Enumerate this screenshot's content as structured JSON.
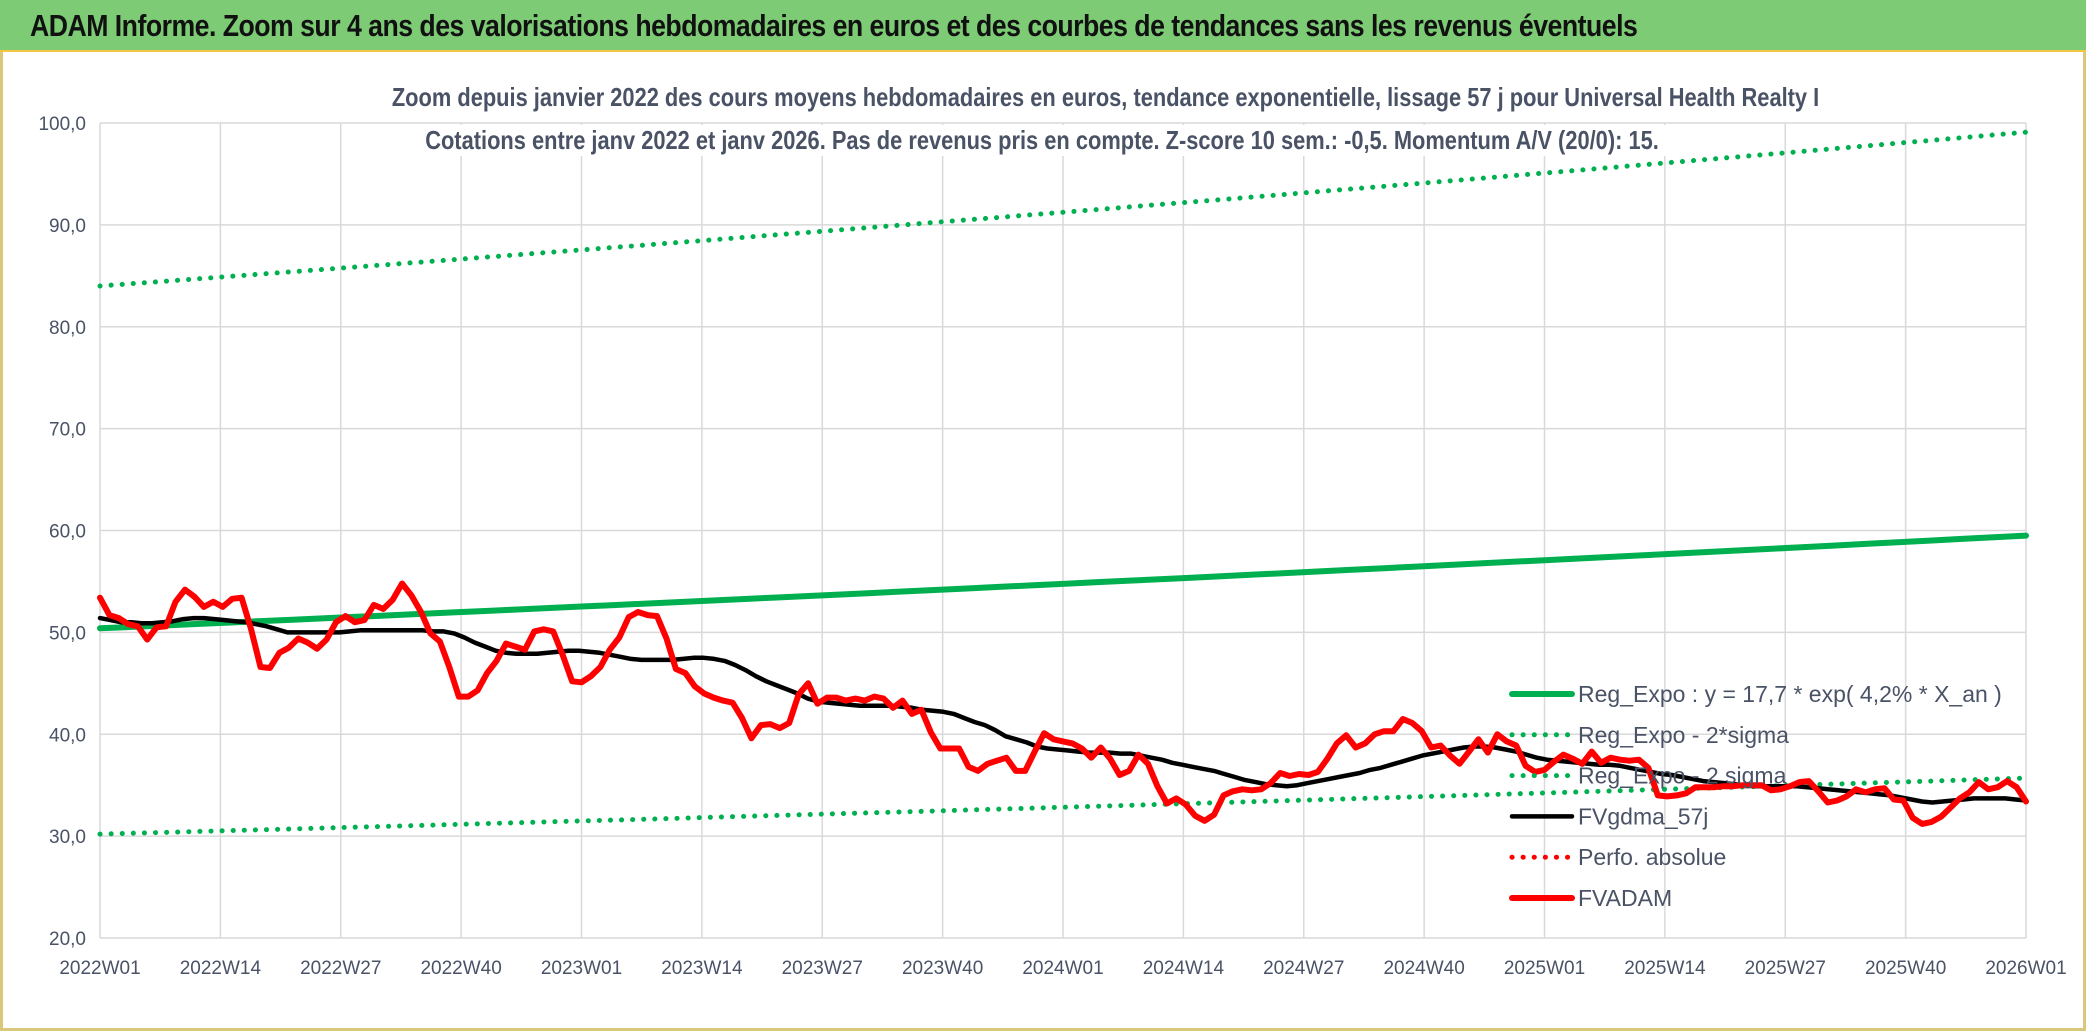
{
  "header": {
    "title": "ADAM Informe. Zoom sur 4 ans des valorisations hebdomadaires en euros et des courbes de tendances sans les revenus éventuels"
  },
  "chart_data": {
    "type": "line",
    "title": "Zoom depuis janvier 2022 des cours moyens hebdomadaires en euros, tendance exponentielle, lissage 57 j pour Universal Health Realty I",
    "subtitle": "Cotations entre janv 2022 et janv 2026. Pas de revenus pris en compte. Z-score 10 sem.: -0,5. Momentum A/V (20/0): 15.",
    "xlabel": "",
    "ylabel": "",
    "ylim": [
      20,
      100
    ],
    "yticks": [
      "20,0",
      "30,0",
      "40,0",
      "50,0",
      "60,0",
      "70,0",
      "80,0",
      "90,0",
      "100,0"
    ],
    "x_ticks": [
      "2022W01",
      "2022W14",
      "2022W27",
      "2022W40",
      "2023W01",
      "2023W14",
      "2023W27",
      "2023W40",
      "2024W01",
      "2024W14",
      "2024W27",
      "2024W40",
      "2025W01",
      "2025W14",
      "2025W27",
      "2025W40",
      "2026W01"
    ],
    "grid": true,
    "legend_position": "bottom-right",
    "series": [
      {
        "name": "Reg_Expo : y = 17,7 * exp( 4,2% *  X_an )",
        "color": "#00b050",
        "style": "solid-thick",
        "start": 50.4,
        "end": 59.5
      },
      {
        "name": "Reg_Expo - 2*sigma",
        "color": "#00b050",
        "style": "dotted",
        "start": 84.0,
        "end": 99.1
      },
      {
        "name": "Reg_Expo - 2 sigma",
        "color": "#00b050",
        "style": "dotted",
        "start": 30.2,
        "end": 35.7
      },
      {
        "name": "FVgdma_57j",
        "color": "#000000",
        "style": "solid",
        "values": [
          51.4,
          51.2,
          51.0,
          51.0,
          50.9,
          50.9,
          51.0,
          51.1,
          51.3,
          51.4,
          51.4,
          51.3,
          51.2,
          51.1,
          51.0,
          50.8,
          50.6,
          50.3,
          50.0,
          50.0,
          50.0,
          50.0,
          50.0,
          50.0,
          50.1,
          50.2,
          50.2,
          50.2,
          50.2,
          50.2,
          50.2,
          50.2,
          50.1,
          50.1,
          49.9,
          49.5,
          49.0,
          48.6,
          48.2,
          48.0,
          47.9,
          47.9,
          47.9,
          48.0,
          48.1,
          48.2,
          48.2,
          48.1,
          48.0,
          47.8,
          47.6,
          47.4,
          47.3,
          47.3,
          47.3,
          47.3,
          47.4,
          47.5,
          47.5,
          47.4,
          47.2,
          46.8,
          46.3,
          45.7,
          45.2,
          44.8,
          44.4,
          44.0,
          43.5,
          43.2,
          43.1,
          43.0,
          42.9,
          42.8,
          42.8,
          42.8,
          42.8,
          42.7,
          42.6,
          42.4,
          42.3,
          42.2,
          42.0,
          41.6,
          41.2,
          40.9,
          40.4,
          39.8,
          39.5,
          39.2,
          38.8,
          38.6,
          38.5,
          38.4,
          38.3,
          38.2,
          38.2,
          38.2,
          38.1,
          38.1,
          37.9,
          37.7,
          37.5,
          37.2,
          37.0,
          36.8,
          36.6,
          36.4,
          36.1,
          35.8,
          35.5,
          35.3,
          35.1,
          35.0,
          34.9,
          35.0,
          35.2,
          35.4,
          35.6,
          35.8,
          36.0,
          36.2,
          36.5,
          36.7,
          37.0,
          37.3,
          37.6,
          37.9,
          38.1,
          38.3,
          38.5,
          38.7,
          38.8,
          38.8,
          38.7,
          38.5,
          38.3,
          38.0,
          37.7,
          37.5,
          37.4,
          37.3,
          37.2,
          37.1,
          37.0,
          37.0,
          36.9,
          36.7,
          36.5,
          36.3,
          36.1,
          36.0,
          35.8,
          35.6,
          35.4,
          35.3,
          35.2,
          35.1,
          35.0,
          34.9,
          34.9,
          34.9,
          34.9,
          34.9,
          34.8,
          34.7,
          34.6,
          34.5,
          34.4,
          34.3,
          34.2,
          34.1,
          34.0,
          33.8,
          33.6,
          33.4,
          33.3,
          33.4,
          33.5,
          33.6,
          33.7,
          33.7,
          33.7,
          33.7,
          33.6,
          33.5
        ]
      },
      {
        "name": "Perfo. absolue",
        "color": "#ff0000",
        "style": "dotted",
        "values": []
      },
      {
        "name": "FVADAM",
        "color": "#ff0000",
        "style": "solid-thick",
        "values": [
          53.4,
          51.7,
          51.4,
          50.8,
          50.6,
          49.3,
          50.5,
          50.6,
          53.0,
          54.2,
          53.5,
          52.5,
          53.0,
          52.5,
          53.3,
          53.4,
          50.3,
          46.6,
          46.5,
          48.0,
          48.5,
          49.4,
          49.0,
          48.4,
          49.3,
          51.0,
          51.6,
          51.0,
          51.2,
          52.7,
          52.3,
          53.2,
          54.8,
          53.6,
          52.0,
          49.9,
          49.1,
          46.6,
          43.7,
          43.7,
          44.3,
          46.0,
          47.2,
          48.9,
          48.6,
          48.3,
          50.1,
          50.3,
          50.1,
          47.8,
          45.2,
          45.1,
          45.7,
          46.6,
          48.3,
          49.5,
          51.5,
          52.0,
          51.7,
          51.6,
          49.4,
          46.4,
          46.0,
          44.7,
          44.0,
          43.6,
          43.3,
          43.1,
          41.6,
          39.6,
          40.9,
          41.0,
          40.6,
          41.1,
          43.9,
          45.0,
          43.0,
          43.6,
          43.6,
          43.3,
          43.5,
          43.3,
          43.7,
          43.5,
          42.6,
          43.3,
          42.0,
          42.4,
          40.2,
          38.6,
          38.6,
          38.6,
          36.8,
          36.4,
          37.1,
          37.4,
          37.7,
          36.4,
          36.4,
          38.3,
          40.1,
          39.5,
          39.3,
          39.1,
          38.6,
          37.7,
          38.7,
          37.6,
          36.0,
          36.4,
          38.0,
          37.1,
          34.9,
          33.2,
          33.7,
          33.1,
          32.0,
          31.5,
          32.1,
          34.0,
          34.4,
          34.6,
          34.5,
          34.6,
          35.2,
          36.2,
          35.9,
          36.1,
          36.0,
          36.3,
          37.6,
          39.1,
          39.9,
          38.7,
          39.1,
          40.0,
          40.3,
          40.3,
          41.5,
          41.1,
          40.3,
          38.7,
          38.9,
          37.9,
          37.1,
          38.3,
          39.5,
          38.2,
          40.0,
          39.3,
          38.9,
          36.9,
          36.3,
          36.5,
          37.3,
          38.0,
          37.6,
          37.1,
          38.3,
          37.2,
          37.7,
          37.5,
          37.4,
          37.5,
          36.7,
          34.0,
          33.9,
          34.0,
          34.2,
          34.8,
          34.8,
          34.8,
          34.9,
          34.9,
          35.0,
          35.0,
          35.0,
          34.5,
          34.6,
          34.9,
          35.3,
          35.4,
          34.4,
          33.3,
          33.5,
          33.9,
          34.6,
          34.3,
          34.6,
          34.7,
          33.6,
          33.5,
          31.8,
          31.2,
          31.4,
          31.9,
          32.8,
          33.7,
          34.3,
          35.3,
          34.6,
          34.8,
          35.4,
          34.8,
          33.4
        ]
      }
    ]
  }
}
